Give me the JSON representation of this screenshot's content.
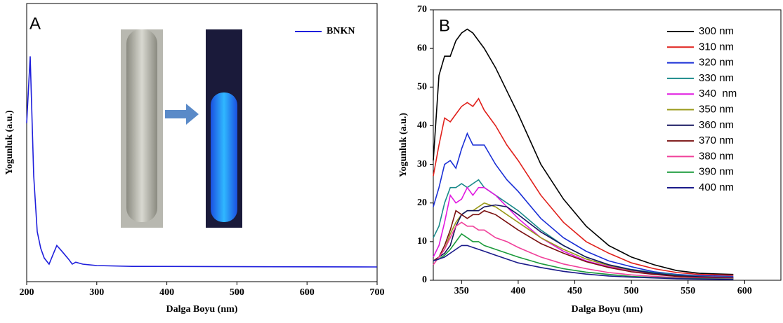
{
  "chart_data": [
    {
      "type": "line",
      "panel_label": "A",
      "x_label": "Dalga Boyu (nm)",
      "y_label": "Yogunluk (a.u.)",
      "x": [
        200,
        205,
        210,
        215,
        220,
        225,
        232,
        238,
        243,
        250,
        260,
        265,
        270,
        280,
        300,
        350,
        700
      ],
      "series": [
        {
          "name": "BNKN",
          "color": "#1f1fdc",
          "values": [
            0.57,
            0.81,
            0.38,
            0.18,
            0.12,
            0.085,
            0.063,
            0.1,
            0.13,
            0.11,
            0.08,
            0.063,
            0.07,
            0.063,
            0.058,
            0.055,
            0.053
          ]
        }
      ],
      "xlim": [
        200,
        700
      ],
      "ylim": [
        0,
        1
      ],
      "xticks": [
        200,
        300,
        400,
        500,
        600,
        700
      ],
      "legend": "upper right"
    },
    {
      "type": "line",
      "panel_label": "B",
      "x_label": "Dalga Boyu (nm)",
      "y_label": "Yogunluk (a.u.)",
      "x": [
        325,
        330,
        335,
        340,
        345,
        350,
        355,
        360,
        365,
        370,
        380,
        390,
        400,
        420,
        440,
        460,
        480,
        500,
        520,
        540,
        560,
        590
      ],
      "series": [
        {
          "name": "300 nm",
          "color": "#000000",
          "values": [
            31,
            53,
            58,
            58,
            62,
            64,
            65,
            64,
            62,
            60,
            55,
            49,
            43,
            30,
            21,
            14,
            9,
            6,
            4,
            2.5,
            1.8,
            1.5
          ]
        },
        {
          "name": "310 nm",
          "color": "#e0201b",
          "values": [
            27,
            35,
            42,
            41,
            43,
            45,
            46,
            45,
            47,
            44,
            40,
            35,
            31,
            22,
            15,
            10,
            7,
            4.5,
            3,
            2,
            1.5,
            1.3
          ]
        },
        {
          "name": "320 nm",
          "color": "#1a2fd6",
          "values": [
            19,
            24,
            30,
            31,
            29,
            34,
            38,
            35,
            35,
            35,
            30,
            26,
            23,
            16,
            11,
            7.5,
            5,
            3.5,
            2.2,
            1.5,
            1.2,
            1
          ]
        },
        {
          "name": "330 nm",
          "color": "#1a8a8a",
          "values": [
            11,
            14,
            20,
            24,
            24,
            25,
            24,
            25,
            26,
            24,
            22,
            20,
            18,
            13,
            9,
            6,
            4,
            2.8,
            2,
            1.4,
            1,
            0.8
          ]
        },
        {
          "name": "340  nm",
          "color": "#e018e0",
          "values": [
            6,
            9,
            15,
            22,
            20,
            21,
            24,
            22,
            24,
            24,
            22,
            19,
            16,
            11,
            7.5,
            5,
            3.5,
            2.5,
            1.7,
            1.2,
            0.9,
            0.7
          ]
        },
        {
          "name": "350 nm",
          "color": "#9a9a1a",
          "values": [
            5,
            6,
            8,
            12,
            15,
            17,
            18,
            18,
            19,
            20,
            19,
            17,
            15,
            11,
            8,
            5.5,
            3.8,
            2.6,
            1.8,
            1.2,
            0.9,
            0.6
          ]
        },
        {
          "name": "360 nm",
          "color": "#14145e",
          "values": [
            5,
            6,
            7,
            9,
            14,
            17,
            18,
            18,
            18,
            19,
            19.5,
            19,
            17,
            12.5,
            9,
            6,
            4,
            2.7,
            1.8,
            1.2,
            0.9,
            0.6
          ]
        },
        {
          "name": "370 nm",
          "color": "#7a1010",
          "values": [
            5,
            6,
            9,
            13,
            18,
            17,
            16,
            17,
            17,
            18,
            17,
            15,
            13,
            9.5,
            7,
            4.8,
            3.3,
            2.2,
            1.5,
            1,
            0.7,
            0.5
          ]
        },
        {
          "name": "380 nm",
          "color": "#f0409a",
          "values": [
            4,
            6,
            8,
            11,
            14,
            15,
            14,
            14,
            13,
            13,
            11,
            10,
            8.5,
            6,
            4.2,
            3,
            2,
            1.4,
            1,
            0.7,
            0.5,
            0.4
          ]
        },
        {
          "name": "390 nm",
          "color": "#1a9a3a",
          "values": [
            5,
            5.5,
            6.5,
            8,
            10,
            12,
            11,
            10,
            10,
            9,
            8,
            7,
            6,
            4.3,
            3,
            2.1,
            1.5,
            1,
            0.7,
            0.5,
            0.4,
            0.3
          ]
        },
        {
          "name": "400 nm",
          "color": "#1a1a8a",
          "values": [
            5,
            5.5,
            6,
            7,
            8,
            9,
            9,
            8.5,
            8,
            7.5,
            6.5,
            5.5,
            4.5,
            3.3,
            2.3,
            1.6,
            1.1,
            0.8,
            0.6,
            0.4,
            0.3,
            0.2
          ]
        }
      ],
      "xlim": [
        325,
        632
      ],
      "ylim": [
        0,
        70
      ],
      "xticks": [
        350,
        400,
        450,
        500,
        550,
        600
      ],
      "yticks": [
        0,
        10,
        20,
        30,
        40,
        50,
        60,
        70
      ],
      "legend": "upper right"
    }
  ]
}
